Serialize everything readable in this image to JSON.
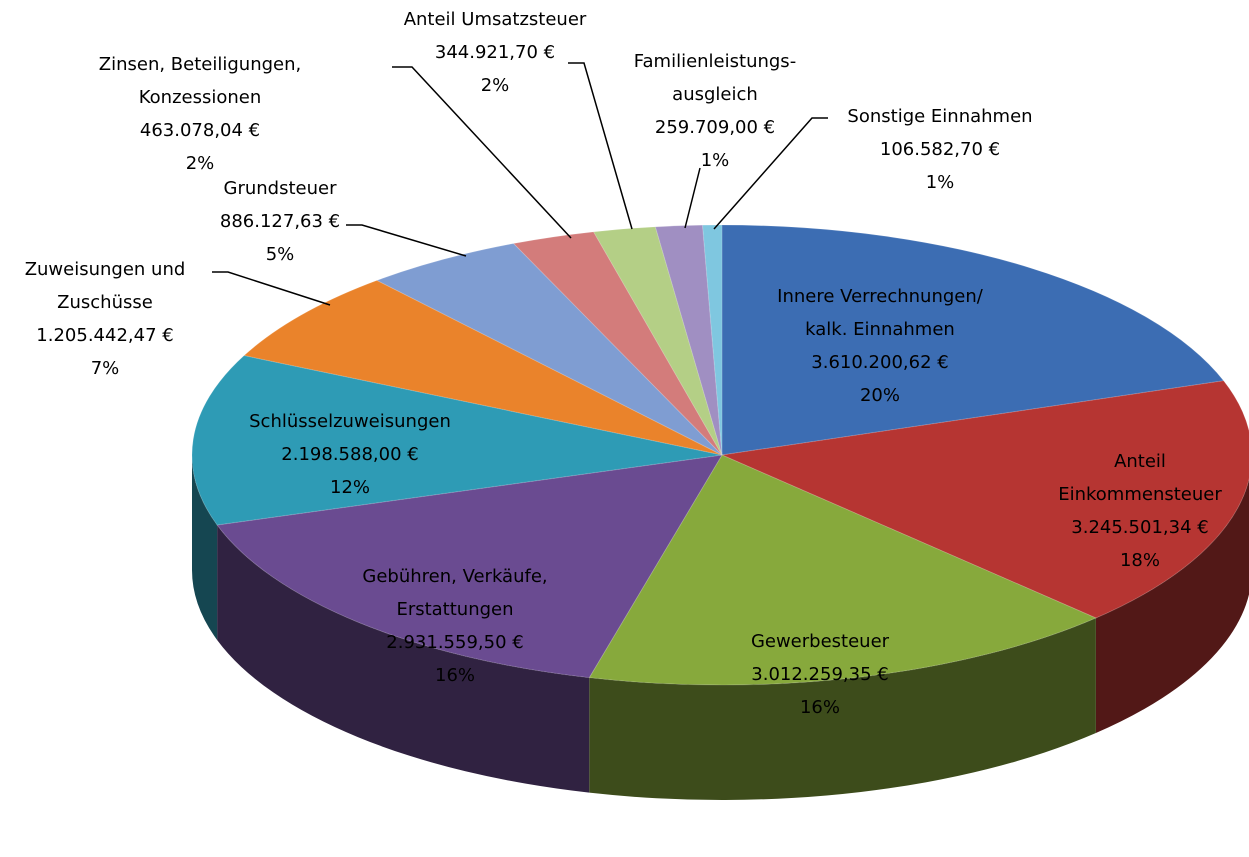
{
  "chart_data": {
    "type": "pie3d",
    "categories": [
      "Innere Verrechnungen/\nkalk. Einnahmen",
      "Anteil\nEinkommensteuer",
      "Gewerbesteuer",
      "Gebühren, Verkäufe,\nErstattungen",
      "Schlüsselzuweisungen",
      "Zuweisungen und\nZuschüsse",
      "Grundsteuer",
      "Zinsen, Beteiligungen,\nKonzessionen",
      "Anteil Umsatzsteuer",
      "Familienleistungs-\nausgleich",
      "Sonstige Einnahmen"
    ],
    "values": [
      3610200.62,
      3245501.34,
      3012259.35,
      2931559.5,
      2198588.0,
      1205442.47,
      886127.63,
      463078.04,
      344921.7,
      259709.0,
      106582.7
    ],
    "value_labels": [
      "3.610.200,62 €",
      "3.245.501,34 €",
      "3.012.259,35 €",
      "2.931.559,50 €",
      "2.198.588,00 €",
      "1.205.442,47 €",
      "886.127,63 €",
      "463.078,04 €",
      "344.921,70 €",
      "259.709,00 €",
      "106.582,70 €"
    ],
    "percent_labels": [
      "20%",
      "18%",
      "16%",
      "16%",
      "12%",
      "7%",
      "5%",
      "2%",
      "2%",
      "1%",
      "1%"
    ],
    "colors": [
      "#3c6db3",
      "#b63532",
      "#87a93c",
      "#6a4b91",
      "#2e9bb5",
      "#ea832b",
      "#7f9dd2",
      "#d37c7b",
      "#b4cf86",
      "#a08fc2",
      "#7fc7e0"
    ]
  }
}
